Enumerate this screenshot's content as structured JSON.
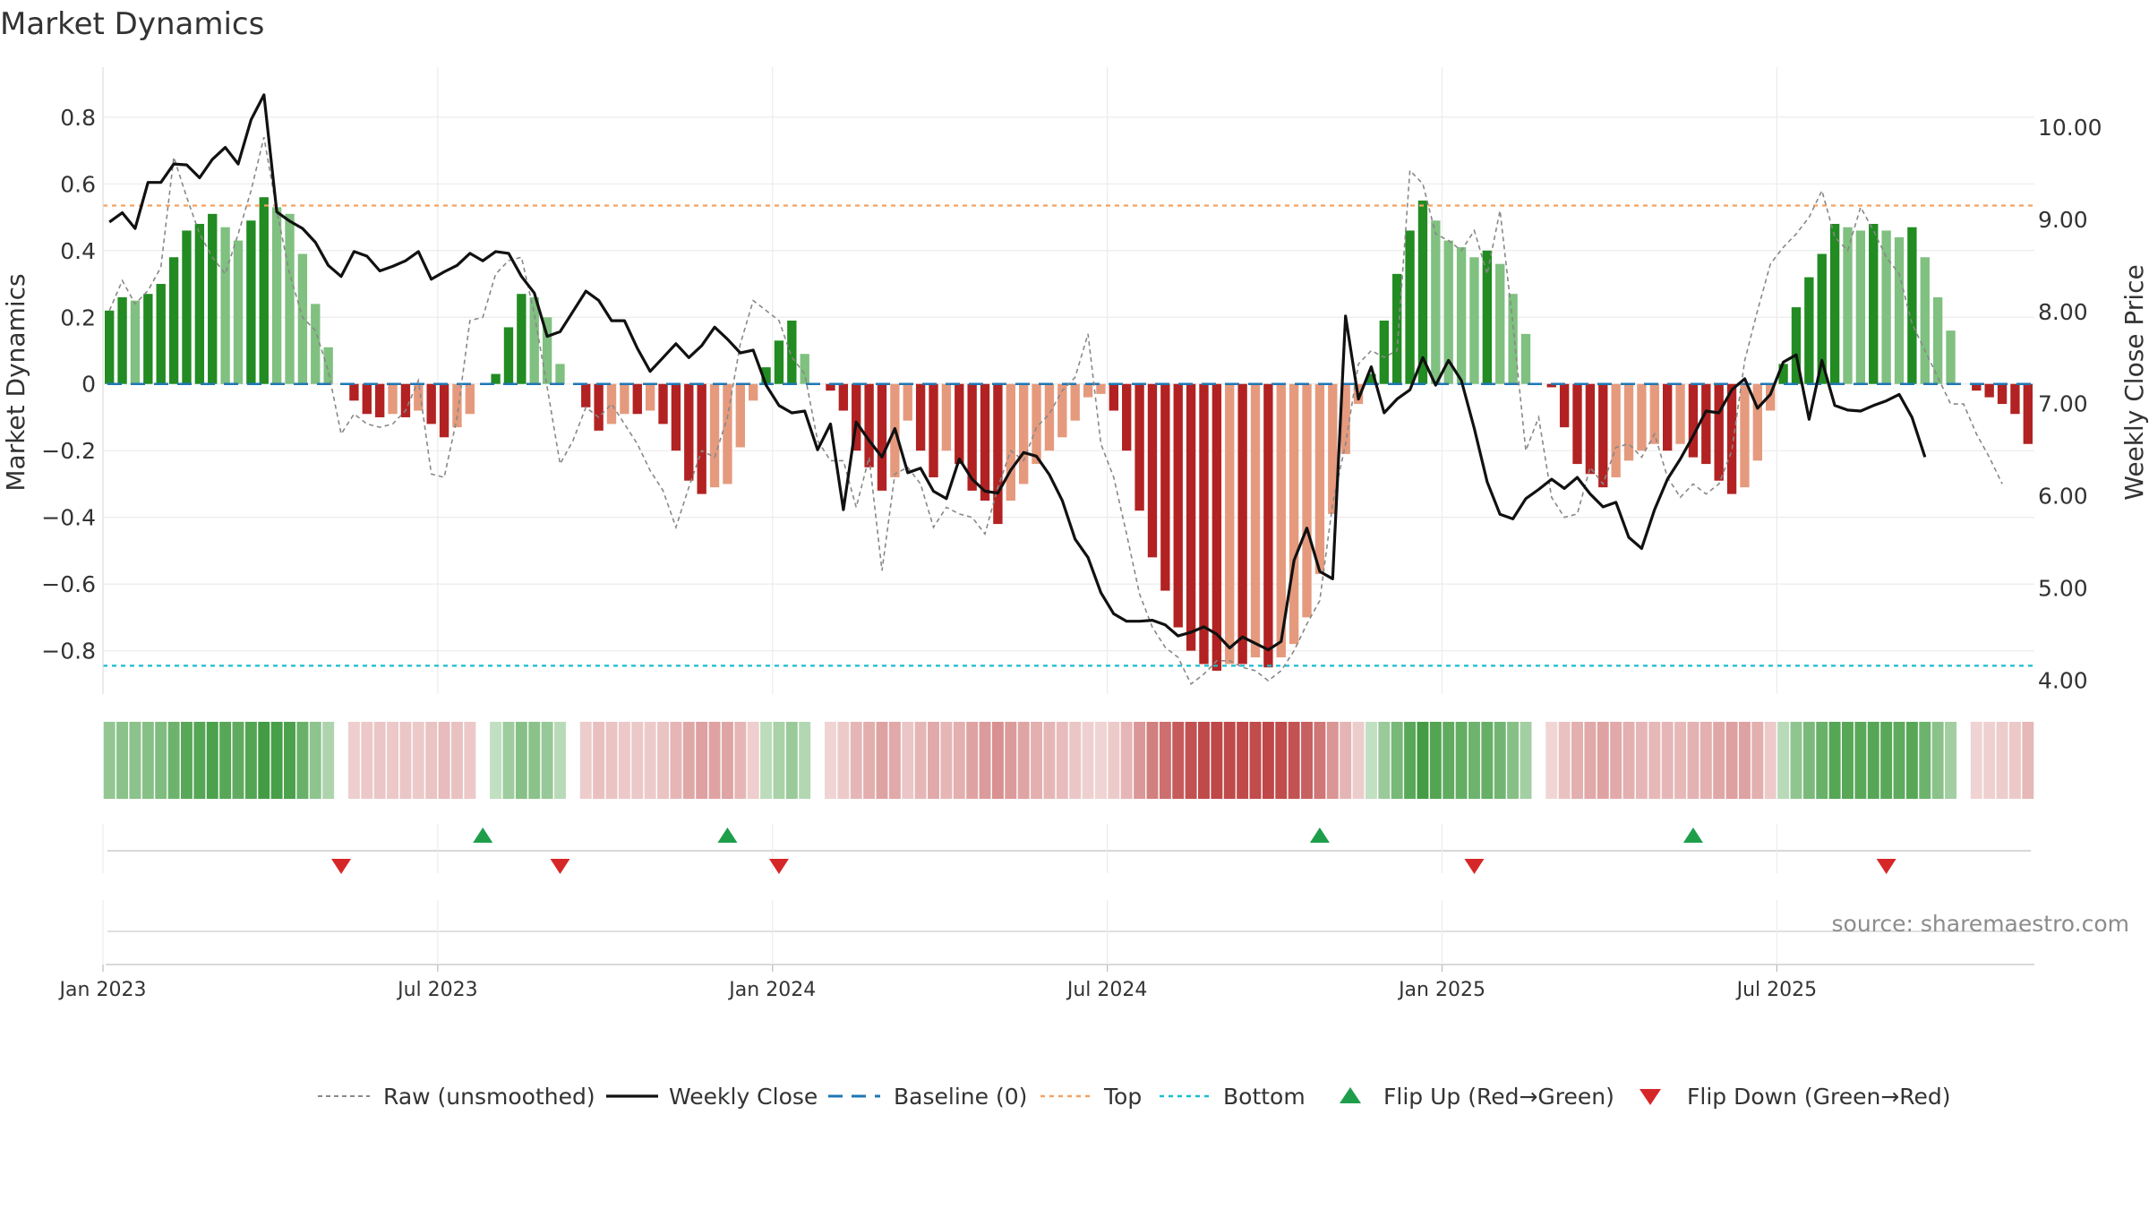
{
  "chart_data": {
    "type": "bar",
    "title": "Market Dynamics",
    "ylabel": "Market Dynamics",
    "y2label": "Weekly Close Price",
    "ylim": [
      -0.93,
      0.95
    ],
    "y2lim": [
      3.85,
      10.65
    ],
    "yticks": [
      {
        "v": 0.8,
        "label": "0.8"
      },
      {
        "v": 0.6,
        "label": "0.6"
      },
      {
        "v": 0.4,
        "label": "0.4"
      },
      {
        "v": 0.2,
        "label": "0.2"
      },
      {
        "v": 0,
        "label": "0"
      },
      {
        "v": -0.2,
        "label": "−0.2"
      },
      {
        "v": -0.4,
        "label": "−0.4"
      },
      {
        "v": -0.6,
        "label": "−0.6"
      },
      {
        "v": -0.8,
        "label": "−0.8"
      }
    ],
    "y2ticks": [
      {
        "v": 10,
        "label": "10.00"
      },
      {
        "v": 9,
        "label": "9.00"
      },
      {
        "v": 8,
        "label": "8.00"
      },
      {
        "v": 7,
        "label": "7.00"
      },
      {
        "v": 6,
        "label": "6.00"
      },
      {
        "v": 5,
        "label": "5.00"
      },
      {
        "v": 4,
        "label": "4.00"
      }
    ],
    "xticks": [
      {
        "week": 0,
        "label": "Jan 2023"
      },
      {
        "week": 26,
        "label": "Jul 2023"
      },
      {
        "week": 52,
        "label": "Jan 2024"
      },
      {
        "week": 78,
        "label": "Jul 2024"
      },
      {
        "week": 104,
        "label": "Jan 2025"
      },
      {
        "week": 130,
        "label": "Jul 2025"
      }
    ],
    "x_start": "2023-01-02",
    "x_step": "1 week",
    "top_level": 0.535,
    "bottom_level": -0.845,
    "grid": true,
    "legend_position": "bottom-center",
    "source": "source: sharemaestro.com",
    "colors": {
      "bull_strong": "#228b22",
      "bull_weak": "#80c080",
      "bear_strong": "#b22222",
      "bear_weak": "#e59a7e",
      "raw": "#888888",
      "close": "#111111",
      "baseline": "#1f77b4",
      "top": "#f4a261",
      "bottom": "#17becf",
      "flip_up": "#1e9e4a",
      "flip_down": "#d62728"
    },
    "smoothed": [
      0.22,
      0.26,
      0.25,
      0.27,
      0.3,
      0.38,
      0.46,
      0.48,
      0.51,
      0.47,
      0.43,
      0.49,
      0.56,
      0.53,
      0.51,
      0.39,
      0.24,
      0.11,
      0,
      -0.05,
      -0.09,
      -0.1,
      -0.09,
      -0.1,
      -0.08,
      -0.12,
      -0.16,
      -0.13,
      -0.09,
      0,
      0.03,
      0.17,
      0.27,
      0.26,
      0.2,
      0.06,
      0,
      -0.07,
      -0.14,
      -0.12,
      -0.09,
      -0.09,
      -0.08,
      -0.12,
      -0.2,
      -0.29,
      -0.33,
      -0.31,
      -0.3,
      -0.19,
      -0.05,
      0.05,
      0.13,
      0.19,
      0.09,
      0,
      -0.02,
      -0.08,
      -0.2,
      -0.25,
      -0.32,
      -0.28,
      -0.11,
      -0.2,
      -0.28,
      -0.2,
      -0.24,
      -0.32,
      -0.35,
      -0.42,
      -0.35,
      -0.3,
      -0.24,
      -0.2,
      -0.16,
      -0.11,
      -0.04,
      -0.03,
      -0.08,
      -0.2,
      -0.38,
      -0.52,
      -0.62,
      -0.73,
      -0.8,
      -0.84,
      -0.86,
      -0.84,
      -0.84,
      -0.82,
      -0.85,
      -0.82,
      -0.78,
      -0.7,
      -0.57,
      -0.39,
      -0.21,
      -0.06,
      0.03,
      0.19,
      0.33,
      0.46,
      0.55,
      0.49,
      0.43,
      0.41,
      0.38,
      0.4,
      0.36,
      0.27,
      0.15,
      0,
      -0.01,
      -0.13,
      -0.24,
      -0.27,
      -0.31,
      -0.28,
      -0.23,
      -0.2,
      -0.18,
      -0.2,
      -0.18,
      -0.22,
      -0.24,
      -0.29,
      -0.33,
      -0.31,
      -0.23,
      -0.08,
      0.06,
      0.23,
      0.32,
      0.39,
      0.48,
      0.47,
      0.46,
      0.48,
      0.46,
      0.44,
      0.47,
      0.38,
      0.26,
      0.16,
      0,
      -0.02,
      -0.04,
      -0.06,
      -0.09,
      -0.18
    ],
    "raw": [
      0.22,
      0.31,
      0.24,
      0.28,
      0.35,
      0.68,
      0.56,
      0.45,
      0.38,
      0.33,
      0.45,
      0.58,
      0.74,
      0.52,
      0.33,
      0.2,
      0.16,
      0.04,
      -0.15,
      -0.09,
      -0.12,
      -0.13,
      -0.12,
      -0.08,
      0.01,
      -0.27,
      -0.28,
      -0.1,
      0.19,
      0.2,
      0.33,
      0.37,
      0.38,
      0.21,
      -0.01,
      -0.24,
      -0.17,
      -0.07,
      -0.1,
      -0.06,
      -0.12,
      -0.18,
      -0.26,
      -0.32,
      -0.43,
      -0.31,
      -0.2,
      -0.22,
      -0.1,
      0.12,
      0.25,
      0.22,
      0.19,
      0.08,
      0.03,
      -0.17,
      -0.23,
      -0.23,
      -0.37,
      -0.22,
      -0.56,
      -0.27,
      -0.25,
      -0.3,
      -0.43,
      -0.37,
      -0.39,
      -0.4,
      -0.45,
      -0.31,
      -0.2,
      -0.23,
      -0.13,
      -0.09,
      -0.02,
      0.02,
      0.15,
      -0.18,
      -0.28,
      -0.45,
      -0.63,
      -0.73,
      -0.79,
      -0.82,
      -0.9,
      -0.87,
      -0.83,
      -0.83,
      -0.85,
      -0.86,
      -0.89,
      -0.86,
      -0.8,
      -0.72,
      -0.65,
      -0.36,
      -0.18,
      0.06,
      0.1,
      0.08,
      0.1,
      0.64,
      0.6,
      0.45,
      0.43,
      0.4,
      0.46,
      0.33,
      0.52,
      0.18,
      -0.2,
      -0.1,
      -0.34,
      -0.4,
      -0.39,
      -0.25,
      -0.3,
      -0.19,
      -0.18,
      -0.22,
      -0.15,
      -0.28,
      -0.34,
      -0.3,
      -0.33,
      -0.3,
      -0.2,
      0.07,
      0.22,
      0.36,
      0.41,
      0.45,
      0.5,
      0.58,
      0.44,
      0.4,
      0.53,
      0.46,
      0.38,
      0.33,
      0.18,
      0.1,
      0.02,
      -0.06,
      -0.06,
      -0.15,
      -0.22,
      -0.3
    ],
    "close": [
      8.97,
      9.07,
      8.9,
      9.4,
      9.4,
      9.6,
      9.59,
      9.45,
      9.65,
      9.78,
      9.6,
      10.08,
      10.35,
      9.08,
      8.98,
      8.9,
      8.75,
      8.5,
      8.38,
      8.65,
      8.6,
      8.44,
      8.49,
      8.55,
      8.65,
      8.35,
      8.43,
      8.5,
      8.63,
      8.55,
      8.65,
      8.63,
      8.38,
      8.2,
      7.73,
      7.78,
      8.0,
      8.22,
      8.12,
      7.9,
      7.9,
      7.6,
      7.35,
      7.5,
      7.65,
      7.5,
      7.63,
      7.83,
      7.7,
      7.55,
      7.58,
      7.2,
      6.98,
      6.9,
      6.92,
      6.5,
      6.78,
      5.85,
      6.8,
      6.6,
      6.42,
      6.73,
      6.25,
      6.3,
      6.05,
      5.97,
      6.4,
      6.18,
      6.05,
      6.03,
      6.28,
      6.47,
      6.43,
      6.23,
      5.95,
      5.53,
      5.33,
      4.95,
      4.72,
      4.64,
      4.64,
      4.65,
      4.6,
      4.48,
      4.52,
      4.58,
      4.5,
      4.35,
      4.47,
      4.4,
      4.33,
      4.42,
      5.3,
      5.65,
      5.18,
      5.1,
      7.95,
      7.05,
      7.4,
      6.9,
      7.05,
      7.15,
      7.5,
      7.2,
      7.47,
      7.25,
      6.73,
      6.15,
      5.8,
      5.75,
      5.97,
      6.07,
      6.18,
      6.08,
      6.2,
      6.02,
      5.88,
      5.93,
      5.55,
      5.43,
      5.85,
      6.18,
      6.4,
      6.65,
      6.92,
      6.9,
      7.15,
      7.27,
      6.95,
      7.1,
      7.45,
      7.53,
      6.83,
      7.47,
      6.98,
      6.93,
      6.92,
      6.98,
      7.03,
      7.1,
      6.85,
      6.42
    ],
    "flips_up": [
      29,
      48,
      94,
      123
    ],
    "flips_down": [
      18,
      35,
      52,
      106,
      138
    ],
    "legend": [
      {
        "label": "Raw (unsmoothed)",
        "symbol": "raw"
      },
      {
        "label": "Weekly Close",
        "symbol": "close"
      },
      {
        "label": "Baseline (0)",
        "symbol": "baseline"
      },
      {
        "label": "Top",
        "symbol": "top"
      },
      {
        "label": "Bottom",
        "symbol": "bottom"
      },
      {
        "label": "Flip Up (Red→Green)",
        "symbol": "flip_up"
      },
      {
        "label": "Flip Down (Green→Red)",
        "symbol": "flip_down"
      }
    ]
  }
}
